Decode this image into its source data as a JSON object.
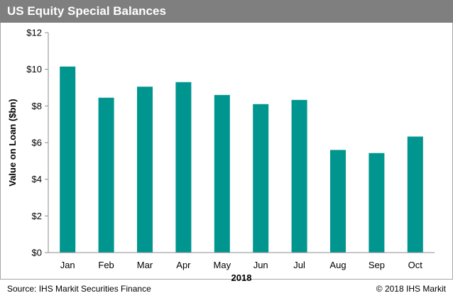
{
  "header": {
    "title": "US Equity Special Balances"
  },
  "footer": {
    "source": "Source: IHS Markit Securities Finance",
    "copyright": "© 2018 IHS Markit"
  },
  "chart_data": {
    "type": "bar",
    "title": "US Equity Special Balances",
    "categories": [
      "Jan",
      "Feb",
      "Mar",
      "Apr",
      "May",
      "Jun",
      "Jul",
      "Aug",
      "Sep",
      "Oct"
    ],
    "values": [
      10.15,
      8.45,
      9.05,
      9.3,
      8.6,
      8.1,
      8.33,
      5.6,
      5.43,
      6.33
    ],
    "xlabel": "2018",
    "ylabel": "Value on Loan ($bn)",
    "ylim": [
      0,
      12
    ],
    "yticks": [
      0,
      2,
      4,
      6,
      8,
      10,
      12
    ],
    "ytick_labels": [
      "$0",
      "$2",
      "$4",
      "$6",
      "$8",
      "$10",
      "$12"
    ],
    "bar_color": "#00968f",
    "grid": false,
    "legend": "none"
  }
}
